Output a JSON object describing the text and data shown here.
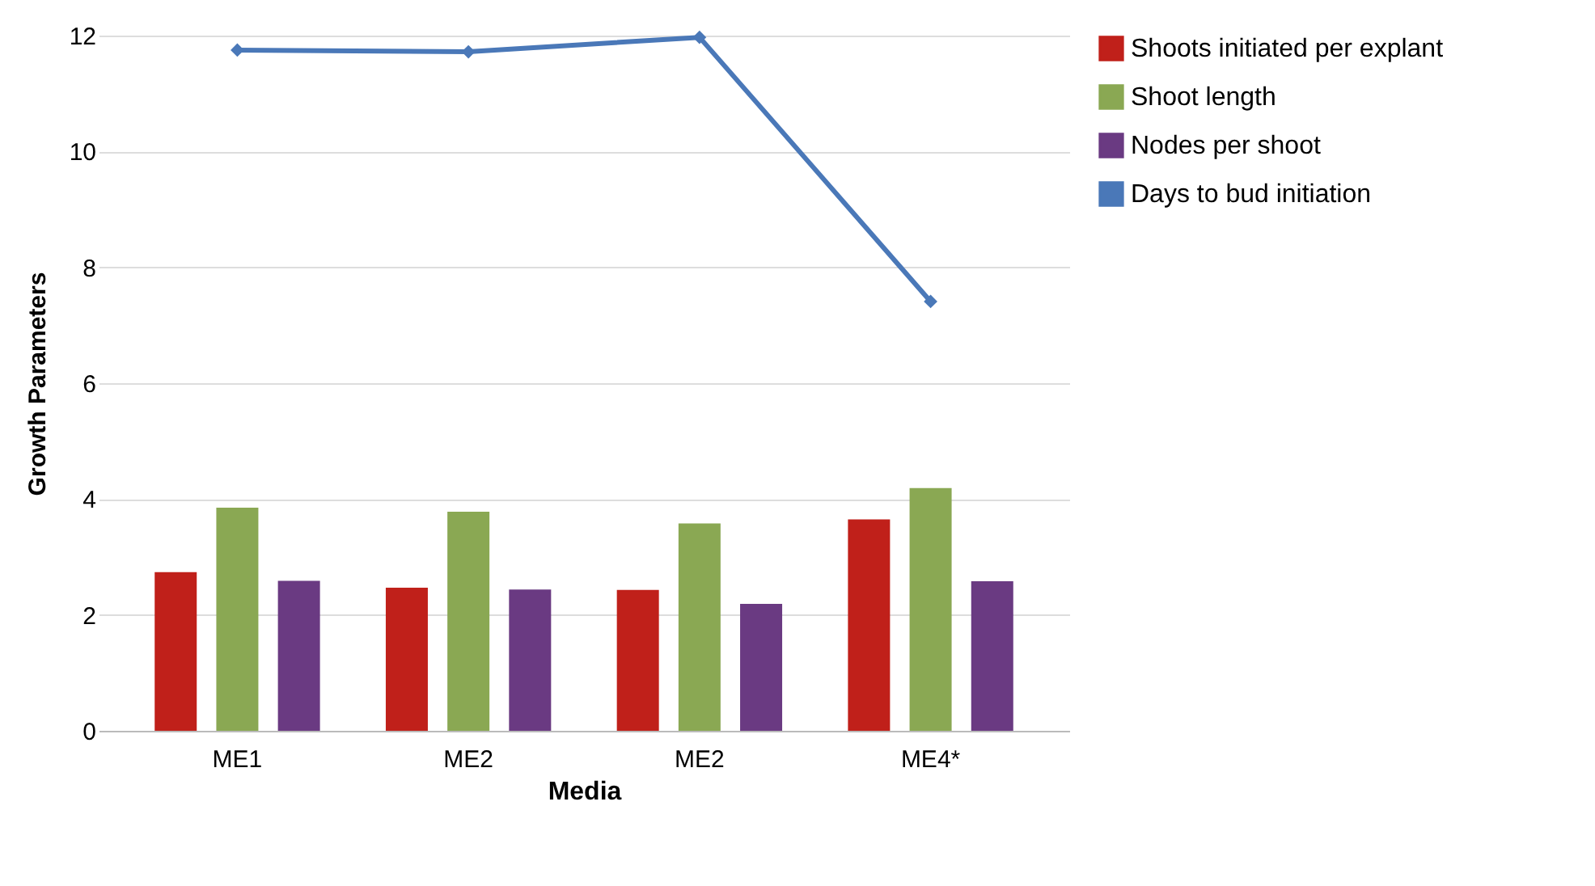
{
  "chart_data": {
    "type": "bar",
    "xlabel": "Media",
    "ylabel": "Growth Parameters",
    "categories": [
      "ME1",
      "ME2",
      "ME2",
      "ME4*"
    ],
    "series": [
      {
        "name": "Shoots initiated per explant",
        "color": "#c0201a",
        "values": [
          2.74,
          2.47,
          2.43,
          3.65
        ]
      },
      {
        "name": "Shoot length",
        "color": "#8aa853",
        "values": [
          3.85,
          3.78,
          3.58,
          4.19
        ]
      },
      {
        "name": "Nodes per shoot",
        "color": "#6a3a82",
        "values": [
          2.59,
          2.44,
          2.19,
          2.58
        ]
      },
      {
        "name": "Days to bud initiation",
        "color": "#4a78b8",
        "type": "line",
        "values": [
          11.75,
          11.72,
          11.97,
          7.41
        ]
      }
    ],
    "ylim": [
      0,
      12
    ],
    "yticks": [
      0,
      2,
      4,
      6,
      8,
      10,
      12
    ],
    "grid": "y",
    "legend": "right",
    "marker": "diamond"
  }
}
